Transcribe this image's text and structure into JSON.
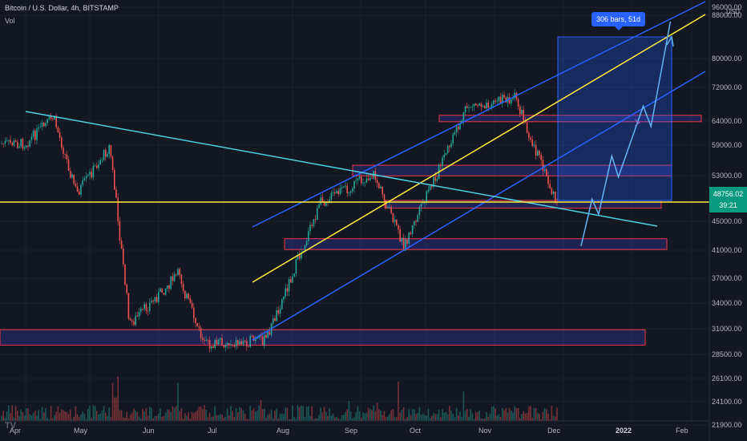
{
  "header": {
    "symbol_line": "Bitcoin / U.S. Dollar, 4h, BITSTAMP",
    "indicator": "Vol"
  },
  "price_axis": {
    "currency": "USD",
    "labels": [
      "96000.00",
      "88000.00",
      "80000.00",
      "72000.00",
      "64000.00",
      "59000.00",
      "53000.00",
      "45000.00",
      "41000.00",
      "37000.00",
      "34000.00",
      "31000.00",
      "28500.00",
      "26100.00",
      "24100.00",
      "21900.00"
    ]
  },
  "time_axis": {
    "labels": [
      "Apr",
      "May",
      "Jun",
      "Jul",
      "Aug",
      "Sep",
      "Oct",
      "Nov",
      "Dec",
      "2022",
      "Feb"
    ]
  },
  "last_price": {
    "price": "48756.02",
    "countdown": "39:21"
  },
  "measure_tool": {
    "label": "306 bars, 51d"
  },
  "colors": {
    "background": "#131722",
    "candle_up": "#26a69a",
    "candle_down": "#ef5350",
    "channel": "#2962ff",
    "channel_mid": "#ffeb3b",
    "trendline": "#4dd0e1",
    "zone_border": "#f23645",
    "zone_fill": "#2a2e7a",
    "projection": "#64b5f6"
  },
  "chart_data": {
    "type": "candlestick",
    "title": "Bitcoin / U.S. Dollar, 4h, BITSTAMP",
    "x_range": [
      "2021-04",
      "2022-02"
    ],
    "y_range": [
      21900,
      96000
    ],
    "y_scale": "log",
    "last_close": 48756.02,
    "price_path": [
      {
        "date": "2021-04-01",
        "price": 58500
      },
      {
        "date": "2021-04-14",
        "price": 64000
      },
      {
        "date": "2021-04-25",
        "price": 49000
      },
      {
        "date": "2021-05-10",
        "price": 58000
      },
      {
        "date": "2021-05-19",
        "price": 31000
      },
      {
        "date": "2021-06-10",
        "price": 37000
      },
      {
        "date": "2021-06-22",
        "price": 29000
      },
      {
        "date": "2021-07-20",
        "price": 29500
      },
      {
        "date": "2021-08-14",
        "price": 47500
      },
      {
        "date": "2021-09-07",
        "price": 52500
      },
      {
        "date": "2021-09-21",
        "price": 41000
      },
      {
        "date": "2021-10-20",
        "price": 66500
      },
      {
        "date": "2021-11-10",
        "price": 68500
      },
      {
        "date": "2021-12-04",
        "price": 42000
      },
      {
        "date": "2021-12-06",
        "price": 48756
      }
    ],
    "projection": [
      {
        "date": "2021-12-09",
        "price": 41000
      },
      {
        "date": "2021-12-14",
        "price": 48000
      },
      {
        "date": "2021-12-17",
        "price": 45500
      },
      {
        "date": "2021-12-23",
        "price": 56000
      },
      {
        "date": "2021-12-26",
        "price": 52000
      },
      {
        "date": "2022-01-07",
        "price": 66500
      },
      {
        "date": "2022-01-11",
        "price": 62000
      },
      {
        "date": "2022-01-21",
        "price": 86000
      }
    ],
    "zones": [
      {
        "from": 29000,
        "to": 30500
      },
      {
        "from": 40500,
        "to": 42000
      },
      {
        "from": 46500,
        "to": 47800
      },
      {
        "from": 52200,
        "to": 54200
      },
      {
        "from": 63000,
        "to": 64400
      }
    ],
    "horizontal_line": 48300,
    "legend": "none",
    "grid": true
  }
}
